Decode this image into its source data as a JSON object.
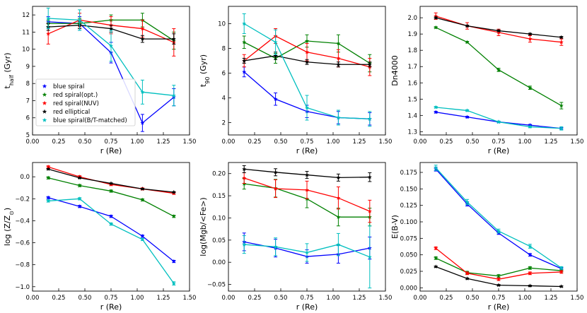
{
  "chart_data": [
    {
      "type": "line",
      "id": "thalf",
      "xlabel": "r (Re)",
      "ylabel": "t_half (Gyr)",
      "xlim": [
        0.0,
        1.5
      ],
      "ylim": [
        5,
        12.5
      ],
      "xticks": [
        "0.00",
        "0.25",
        "0.50",
        "0.75",
        "1.00",
        "1.25",
        "1.50"
      ],
      "yticks": [
        "5",
        "6",
        "7",
        "8",
        "9",
        "10",
        "11",
        "12"
      ],
      "x": [
        0.15,
        0.45,
        0.75,
        1.05,
        1.35
      ],
      "series": [
        {
          "name": "blue spiral",
          "color": "#0000ff",
          "values": [
            11.6,
            11.5,
            9.8,
            5.7,
            7.2
          ],
          "err": [
            0.3,
            0.4,
            0.6,
            0.5,
            0.5
          ]
        },
        {
          "name": "red spiral(opt.)",
          "color": "#008000",
          "values": [
            11.5,
            11.5,
            11.7,
            11.7,
            10.5
          ],
          "err": [
            0.2,
            0.3,
            0.3,
            0.4,
            0.5
          ]
        },
        {
          "name": "red spiral(NUV)",
          "color": "#ff0000",
          "values": [
            10.9,
            11.7,
            11.4,
            11.2,
            10.4
          ],
          "err": [
            0.6,
            0.4,
            0.5,
            0.5,
            0.8
          ]
        },
        {
          "name": "red elliptical",
          "color": "#000000",
          "values": [
            11.3,
            11.4,
            11.2,
            10.6,
            10.6
          ],
          "err": [
            0.2,
            0.2,
            0.2,
            0.2,
            0.3
          ]
        },
        {
          "name": "blue spiral(B/T-matched)",
          "color": "#00bfbf",
          "values": [
            11.8,
            11.7,
            10.2,
            7.5,
            7.3
          ],
          "err": [
            0.6,
            0.6,
            0.9,
            0.7,
            0.6
          ]
        }
      ],
      "legend": "lower-left"
    },
    {
      "type": "line",
      "id": "t90",
      "xlabel": "r (Re)",
      "ylabel": "t_90 (Gyr)",
      "xlim": [
        0.0,
        1.5
      ],
      "ylim": [
        1,
        11.4
      ],
      "xticks": [
        "0.00",
        "0.25",
        "0.50",
        "0.75",
        "1.00",
        "1.25",
        "1.50"
      ],
      "yticks": [
        "2",
        "4",
        "6",
        "8",
        "10"
      ],
      "x": [
        0.15,
        0.45,
        0.75,
        1.05,
        1.35
      ],
      "series": [
        {
          "name": "blue spiral",
          "color": "#0000ff",
          "values": [
            6.1,
            3.9,
            2.9,
            2.4,
            2.3
          ],
          "err": [
            0.4,
            0.5,
            0.5,
            0.5,
            0.5
          ]
        },
        {
          "name": "red spiral(opt.)",
          "color": "#008000",
          "values": [
            8.5,
            7.2,
            8.6,
            8.4,
            6.8
          ],
          "err": [
            0.5,
            0.4,
            0.5,
            0.7,
            0.7
          ]
        },
        {
          "name": "red spiral(NUV)",
          "color": "#ff0000",
          "values": [
            7.0,
            9.0,
            7.7,
            7.2,
            6.5
          ],
          "err": [
            0.5,
            0.6,
            0.7,
            0.7,
            0.7
          ]
        },
        {
          "name": "red elliptical",
          "color": "#000000",
          "values": [
            7.0,
            7.4,
            6.9,
            6.7,
            6.7
          ],
          "err": [
            0.2,
            0.3,
            0.2,
            0.2,
            0.2
          ]
        },
        {
          "name": "blue spiral(B/T-matched)",
          "color": "#00bfbf",
          "values": [
            10.0,
            8.5,
            3.2,
            2.4,
            2.3
          ],
          "err": [
            0.8,
            1.0,
            1.0,
            0.6,
            0.6
          ]
        }
      ]
    },
    {
      "type": "line",
      "id": "dn4000",
      "xlabel": "r (Re)",
      "ylabel": "Dn4000",
      "xlim": [
        0.0,
        1.5
      ],
      "ylim": [
        1.28,
        2.07
      ],
      "xticks": [
        "0.00",
        "0.25",
        "0.50",
        "0.75",
        "1.00",
        "1.25",
        "1.50"
      ],
      "yticks": [
        "1.3",
        "1.4",
        "1.5",
        "1.6",
        "1.7",
        "1.8",
        "1.9",
        "2.0"
      ],
      "x": [
        0.15,
        0.45,
        0.75,
        1.05,
        1.35
      ],
      "series": [
        {
          "name": "blue spiral",
          "color": "#0000ff",
          "values": [
            1.42,
            1.39,
            1.36,
            1.34,
            1.32
          ],
          "err": [
            0.005,
            0.005,
            0.005,
            0.005,
            0.005
          ]
        },
        {
          "name": "red spiral(opt.)",
          "color": "#008000",
          "values": [
            1.94,
            1.85,
            1.68,
            1.57,
            1.46
          ],
          "err": [
            0.005,
            0.005,
            0.01,
            0.01,
            0.02
          ]
        },
        {
          "name": "red spiral(NUV)",
          "color": "#ff0000",
          "values": [
            2.01,
            1.95,
            1.91,
            1.87,
            1.85
          ],
          "err": [
            0.02,
            0.02,
            0.02,
            0.02,
            0.02
          ]
        },
        {
          "name": "red elliptical",
          "color": "#000000",
          "values": [
            2.0,
            1.95,
            1.92,
            1.9,
            1.88
          ],
          "err": [
            0.005,
            0.005,
            0.005,
            0.005,
            0.005
          ]
        },
        {
          "name": "blue spiral(B/T-matched)",
          "color": "#00bfbf",
          "values": [
            1.45,
            1.43,
            1.36,
            1.33,
            1.32
          ],
          "err": [
            0.005,
            0.005,
            0.005,
            0.005,
            0.01
          ]
        }
      ]
    },
    {
      "type": "line",
      "id": "logz",
      "xlabel": "r (Re)",
      "ylabel": "log (Z/Z_sun)",
      "xlim": [
        0.0,
        1.5
      ],
      "ylim": [
        -1.04,
        0.13
      ],
      "xticks": [
        "0.00",
        "0.25",
        "0.50",
        "0.75",
        "1.00",
        "1.25",
        "1.50"
      ],
      "yticks": [
        "-1.0",
        "-0.8",
        "-0.6",
        "-0.4",
        "-0.2",
        "0.0"
      ],
      "x": [
        0.15,
        0.45,
        0.75,
        1.05,
        1.35
      ],
      "series": [
        {
          "name": "blue spiral",
          "color": "#0000ff",
          "values": [
            -0.19,
            -0.27,
            -0.36,
            -0.54,
            -0.77
          ],
          "err": [
            0.01,
            0.01,
            0.01,
            0.01,
            0.01
          ]
        },
        {
          "name": "red spiral(opt.)",
          "color": "#008000",
          "values": [
            -0.01,
            -0.08,
            -0.13,
            -0.21,
            -0.36
          ],
          "err": [
            0.01,
            0.01,
            0.01,
            0.01,
            0.01
          ]
        },
        {
          "name": "red spiral(NUV)",
          "color": "#ff0000",
          "values": [
            0.09,
            0.0,
            -0.07,
            -0.11,
            -0.15
          ],
          "err": [
            0.01,
            0.01,
            0.01,
            0.01,
            0.01
          ]
        },
        {
          "name": "red elliptical",
          "color": "#000000",
          "values": [
            0.07,
            -0.01,
            -0.06,
            -0.11,
            -0.14
          ],
          "err": [
            0.005,
            0.005,
            0.005,
            0.005,
            0.005
          ]
        },
        {
          "name": "blue spiral(B/T-matched)",
          "color": "#00bfbf",
          "values": [
            -0.22,
            -0.2,
            -0.43,
            -0.57,
            -0.97
          ],
          "err": [
            0.01,
            0.01,
            0.01,
            0.01,
            0.015
          ]
        }
      ]
    },
    {
      "type": "line",
      "id": "mgbfe",
      "xlabel": "r (Re)",
      "ylabel": "log(Mgb/<Fe>)",
      "xlim": [
        0.0,
        1.5
      ],
      "ylim": [
        -0.065,
        0.225
      ],
      "xticks": [
        "0.00",
        "0.25",
        "0.50",
        "0.75",
        "1.00",
        "1.25",
        "1.50"
      ],
      "yticks": [
        "-0.05",
        "0.00",
        "0.05",
        "0.10",
        "0.15",
        "0.20"
      ],
      "x": [
        0.15,
        0.45,
        0.75,
        1.05,
        1.35
      ],
      "series": [
        {
          "name": "blue spiral",
          "color": "#0000ff",
          "values": [
            0.046,
            0.032,
            0.013,
            0.018,
            0.032
          ],
          "err": [
            0.02,
            0.02,
            0.015,
            0.02,
            0.025
          ]
        },
        {
          "name": "red spiral(opt.)",
          "color": "#008000",
          "values": [
            0.177,
            0.167,
            0.143,
            0.102,
            0.102
          ],
          "err": [
            0.012,
            0.02,
            0.02,
            0.02,
            0.02
          ]
        },
        {
          "name": "red spiral(NUV)",
          "color": "#ff0000",
          "values": [
            0.19,
            0.166,
            0.163,
            0.145,
            0.115
          ],
          "err": [
            0.012,
            0.02,
            0.02,
            0.025,
            0.025
          ]
        },
        {
          "name": "red elliptical",
          "color": "#000000",
          "values": [
            0.21,
            0.203,
            0.197,
            0.191,
            0.192
          ],
          "err": [
            0.008,
            0.008,
            0.008,
            0.008,
            0.01
          ]
        },
        {
          "name": "blue spiral(B/T-matched)",
          "color": "#00bfbf",
          "values": [
            0.04,
            0.035,
            0.022,
            0.04,
            0.012
          ],
          "err": [
            0.02,
            0.02,
            0.02,
            0.025,
            0.07
          ]
        }
      ]
    },
    {
      "type": "line",
      "id": "ebv",
      "xlabel": "r (Re)",
      "ylabel": "E(B-V)",
      "xlim": [
        0.0,
        1.5
      ],
      "ylim": [
        -0.005,
        0.19
      ],
      "xticks": [
        "0.00",
        "0.25",
        "0.50",
        "0.75",
        "1.00",
        "1.25",
        "1.50"
      ],
      "yticks": [
        "0.000",
        "0.025",
        "0.050",
        "0.075",
        "0.100",
        "0.125",
        "0.150",
        "0.175"
      ],
      "x": [
        0.15,
        0.45,
        0.75,
        1.05,
        1.35
      ],
      "series": [
        {
          "name": "blue spiral",
          "color": "#0000ff",
          "values": [
            0.18,
            0.127,
            0.083,
            0.05,
            0.029
          ],
          "err": [
            0.003,
            0.003,
            0.002,
            0.002,
            0.002
          ]
        },
        {
          "name": "red spiral(opt.)",
          "color": "#008000",
          "values": [
            0.045,
            0.023,
            0.018,
            0.03,
            0.026
          ],
          "err": [
            0.002,
            0.002,
            0.002,
            0.002,
            0.002
          ]
        },
        {
          "name": "red spiral(NUV)",
          "color": "#ff0000",
          "values": [
            0.06,
            0.022,
            0.013,
            0.022,
            0.024
          ],
          "err": [
            0.002,
            0.002,
            0.002,
            0.002,
            0.002
          ]
        },
        {
          "name": "red elliptical",
          "color": "#000000",
          "values": [
            0.032,
            0.014,
            0.004,
            0.003,
            0.002
          ],
          "err": [
            0.001,
            0.001,
            0.001,
            0.001,
            0.001
          ]
        },
        {
          "name": "blue spiral(B/T-matched)",
          "color": "#00bfbf",
          "values": [
            0.182,
            0.13,
            0.086,
            0.063,
            0.03
          ],
          "err": [
            0.004,
            0.004,
            0.003,
            0.003,
            0.002
          ]
        }
      ]
    }
  ]
}
